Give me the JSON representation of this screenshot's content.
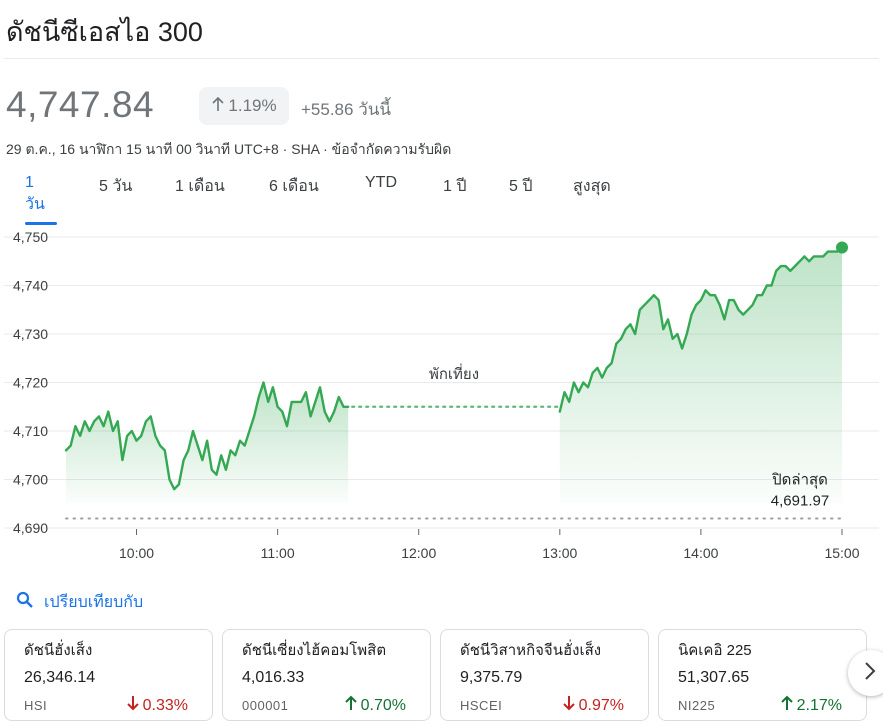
{
  "header": {
    "title": "ดัชนีซีเอสไอ 300"
  },
  "quote": {
    "price": "4,747.84",
    "pct_change": "1.19%",
    "abs_change": "+55.86 วันนี้",
    "meta": "29 ต.ค., 16 นาฬิกา 15 นาที 00 วินาที UTC+8 · SHA · ข้อจำกัดความรับผิด"
  },
  "tabs": [
    {
      "label": "1 วัน",
      "active": true
    },
    {
      "label": "5 วัน",
      "active": false
    },
    {
      "label": "1 เดือน",
      "active": false
    },
    {
      "label": "6 เดือน",
      "active": false
    },
    {
      "label": "YTD",
      "active": false
    },
    {
      "label": "1 ปี",
      "active": false
    },
    {
      "label": "5 ปี",
      "active": false
    },
    {
      "label": "สูงสุด",
      "active": false
    }
  ],
  "chart_data": {
    "type": "line",
    "x_ticks": [
      "10:00",
      "11:00",
      "12:00",
      "13:00",
      "14:00",
      "15:00"
    ],
    "y_ticks": [
      "4,750",
      "4,740",
      "4,730",
      "4,720",
      "4,710",
      "4,700",
      "4,690"
    ],
    "ylim": [
      4690,
      4750
    ],
    "xlim": [
      "09:30",
      "15:00"
    ],
    "grid": true,
    "lunch_label": "พักเที่ยง",
    "prev_close_label": "ปิดล่าสุด",
    "prev_close_value": "4,691.97",
    "prev_close": 4691.97,
    "line_color": "#34a853",
    "series": [
      {
        "points": [
          [
            "09:30",
            4706
          ],
          [
            "09:32",
            4707
          ],
          [
            "09:34",
            4711
          ],
          [
            "09:36",
            4709
          ],
          [
            "09:38",
            4712
          ],
          [
            "09:40",
            4710
          ],
          [
            "09:42",
            4712
          ],
          [
            "09:44",
            4713
          ],
          [
            "09:46",
            4711
          ],
          [
            "09:48",
            4714
          ],
          [
            "09:50",
            4710
          ],
          [
            "09:52",
            4712
          ],
          [
            "09:54",
            4704
          ],
          [
            "09:56",
            4709
          ],
          [
            "09:58",
            4710
          ],
          [
            "10:00",
            4708
          ],
          [
            "10:02",
            4709
          ],
          [
            "10:04",
            4712
          ],
          [
            "10:06",
            4713
          ],
          [
            "10:08",
            4709
          ],
          [
            "10:10",
            4707
          ],
          [
            "10:12",
            4706
          ],
          [
            "10:14",
            4700
          ],
          [
            "10:16",
            4698
          ],
          [
            "10:18",
            4699
          ],
          [
            "10:20",
            4704
          ],
          [
            "10:22",
            4706
          ],
          [
            "10:24",
            4710
          ],
          [
            "10:26",
            4707
          ],
          [
            "10:28",
            4704
          ],
          [
            "10:30",
            4708
          ],
          [
            "10:32",
            4702
          ],
          [
            "10:34",
            4701
          ],
          [
            "10:36",
            4705
          ],
          [
            "10:38",
            4702
          ],
          [
            "10:40",
            4706
          ],
          [
            "10:42",
            4705
          ],
          [
            "10:44",
            4708
          ],
          [
            "10:46",
            4707
          ],
          [
            "10:48",
            4710
          ],
          [
            "10:50",
            4713
          ],
          [
            "10:52",
            4717
          ],
          [
            "10:54",
            4720
          ],
          [
            "10:56",
            4716
          ],
          [
            "10:58",
            4719
          ],
          [
            "11:00",
            4715
          ],
          [
            "11:02",
            4714
          ],
          [
            "11:04",
            4711
          ],
          [
            "11:06",
            4716
          ],
          [
            "11:08",
            4716
          ],
          [
            "11:10",
            4716
          ],
          [
            "11:12",
            4718
          ],
          [
            "11:14",
            4713
          ],
          [
            "11:16",
            4716
          ],
          [
            "11:18",
            4719
          ],
          [
            "11:20",
            4714
          ],
          [
            "11:22",
            4712
          ],
          [
            "11:24",
            4714
          ],
          [
            "11:26",
            4717
          ],
          [
            "11:28",
            4715
          ],
          [
            "11:30",
            4715
          ]
        ]
      },
      {
        "points": [
          [
            "13:00",
            4714
          ],
          [
            "13:02",
            4718
          ],
          [
            "13:04",
            4716
          ],
          [
            "13:06",
            4720
          ],
          [
            "13:08",
            4718
          ],
          [
            "13:10",
            4720
          ],
          [
            "13:12",
            4719
          ],
          [
            "13:14",
            4722
          ],
          [
            "13:16",
            4723
          ],
          [
            "13:18",
            4721
          ],
          [
            "13:20",
            4723
          ],
          [
            "13:22",
            4724
          ],
          [
            "13:24",
            4728
          ],
          [
            "13:26",
            4729
          ],
          [
            "13:28",
            4731
          ],
          [
            "13:30",
            4732
          ],
          [
            "13:32",
            4730
          ],
          [
            "13:34",
            4735
          ],
          [
            "13:36",
            4736
          ],
          [
            "13:38",
            4737
          ],
          [
            "13:40",
            4738
          ],
          [
            "13:42",
            4737
          ],
          [
            "13:44",
            4731
          ],
          [
            "13:46",
            4733
          ],
          [
            "13:48",
            4729
          ],
          [
            "13:50",
            4730
          ],
          [
            "13:52",
            4727
          ],
          [
            "13:54",
            4730
          ],
          [
            "13:56",
            4734
          ],
          [
            "13:58",
            4736
          ],
          [
            "14:00",
            4737
          ],
          [
            "14:02",
            4739
          ],
          [
            "14:04",
            4738
          ],
          [
            "14:06",
            4738
          ],
          [
            "14:08",
            4736
          ],
          [
            "14:10",
            4733
          ],
          [
            "14:12",
            4737
          ],
          [
            "14:14",
            4737
          ],
          [
            "14:16",
            4735
          ],
          [
            "14:18",
            4734
          ],
          [
            "14:20",
            4735
          ],
          [
            "14:22",
            4736
          ],
          [
            "14:24",
            4738
          ],
          [
            "14:26",
            4738
          ],
          [
            "14:28",
            4740
          ],
          [
            "14:30",
            4740
          ],
          [
            "14:32",
            4743
          ],
          [
            "14:34",
            4744
          ],
          [
            "14:36",
            4744
          ],
          [
            "14:38",
            4743
          ],
          [
            "14:40",
            4744
          ],
          [
            "14:42",
            4745
          ],
          [
            "14:44",
            4746
          ],
          [
            "14:46",
            4745
          ],
          [
            "14:48",
            4746
          ],
          [
            "14:50",
            4746
          ],
          [
            "14:52",
            4746
          ],
          [
            "14:54",
            4747
          ],
          [
            "14:56",
            4747
          ],
          [
            "14:58",
            4747
          ],
          [
            "15:00",
            4747.84
          ]
        ]
      }
    ]
  },
  "compare": {
    "label": "เปรียบเทียบกับ"
  },
  "cards": [
    {
      "name": "ดัชนีฮั่งเส็ง",
      "price": "26,346.14",
      "symbol": "HSI",
      "change": "0.33%",
      "direction": "down"
    },
    {
      "name": "ดัชนีเซี่ยงไฮ้คอมโพสิต",
      "price": "4,016.33",
      "symbol": "000001",
      "change": "0.70%",
      "direction": "up"
    },
    {
      "name": "ดัชนีวิสาหกิจจีนฮั่งเส็ง",
      "price": "9,375.79",
      "symbol": "HSCEI",
      "change": "0.97%",
      "direction": "down"
    },
    {
      "name": "นิคเคอิ 225",
      "price": "51,307.65",
      "symbol": "NI225",
      "change": "2.17%",
      "direction": "up"
    }
  ],
  "colors": {
    "accent": "#1a73e8",
    "up": "#137333",
    "down": "#c5221f",
    "line": "#34a853"
  }
}
